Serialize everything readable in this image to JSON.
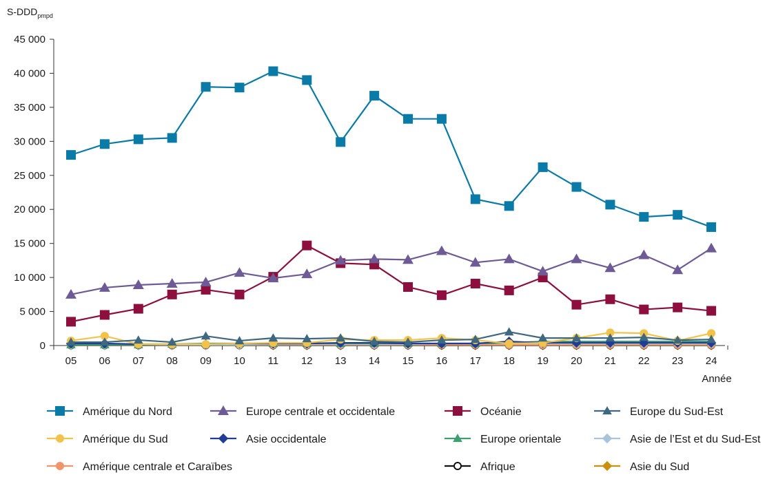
{
  "chart_data": {
    "type": "line",
    "ylabel_main": "S-DDD",
    "ylabel_sub": "pmpd",
    "xlabel": "Année",
    "ylim": [
      0,
      45000
    ],
    "y_ticks": [
      0,
      5000,
      10000,
      15000,
      20000,
      25000,
      30000,
      35000,
      40000,
      45000
    ],
    "y_tick_labels": [
      "0",
      "5 000",
      "10 000",
      "15 000",
      "20 000",
      "25 000",
      "30 000",
      "35 000",
      "40 000",
      "45 000"
    ],
    "categories": [
      "05",
      "06",
      "07",
      "08",
      "09",
      "10",
      "11",
      "12",
      "13",
      "14",
      "15",
      "16",
      "17",
      "18",
      "19",
      "20",
      "21",
      "22",
      "23",
      "24"
    ],
    "grid": false,
    "legend_position": "bottom",
    "series": [
      {
        "name": "Amérique du Nord",
        "color": "#0a7aa6",
        "marker": "square",
        "values": [
          28000,
          29600,
          30300,
          30500,
          38000,
          37900,
          40300,
          39000,
          29900,
          36700,
          33300,
          33300,
          21500,
          20500,
          26200,
          23300,
          20700,
          18900,
          19200,
          17400
        ]
      },
      {
        "name": "Europe centrale et occidentale",
        "color": "#6e5b96",
        "marker": "triangle",
        "values": [
          7500,
          8500,
          8900,
          9100,
          9300,
          10700,
          9900,
          10500,
          12500,
          12700,
          12600,
          13900,
          12200,
          12700,
          10900,
          12700,
          11400,
          13300,
          11100,
          14300
        ]
      },
      {
        "name": "Océanie",
        "color": "#8c0f3e",
        "marker": "square",
        "values": [
          3500,
          4500,
          5400,
          7500,
          8200,
          7500,
          10100,
          14700,
          12100,
          11900,
          8600,
          7400,
          9100,
          8100,
          10000,
          6000,
          6800,
          5300,
          5600,
          5100
        ]
      },
      {
        "name": "Europe du Sud-Est",
        "color": "#3e6880",
        "marker": "triangle",
        "values": [
          500,
          500,
          800,
          500,
          1400,
          700,
          1100,
          1000,
          1100,
          600,
          500,
          800,
          900,
          2000,
          1100,
          1100,
          1100,
          1200,
          800,
          900
        ]
      },
      {
        "name": "Amérique du Sud",
        "color": "#f2c24b",
        "marker": "circle",
        "values": [
          700,
          1400,
          200,
          200,
          200,
          300,
          400,
          400,
          900,
          800,
          800,
          1100,
          800,
          300,
          400,
          1100,
          1900,
          1800,
          700,
          1800
        ]
      },
      {
        "name": "Asie occidentale",
        "color": "#1f3c96",
        "marker": "diamond",
        "values": [
          300,
          300,
          200,
          200,
          200,
          300,
          300,
          300,
          400,
          400,
          300,
          300,
          300,
          600,
          400,
          400,
          400,
          400,
          400,
          400
        ]
      },
      {
        "name": "Europe orientale",
        "color": "#3f9e70",
        "marker": "triangle",
        "values": [
          100,
          100,
          100,
          200,
          300,
          300,
          300,
          300,
          300,
          300,
          300,
          300,
          300,
          400,
          600,
          600,
          600,
          600,
          600,
          600
        ]
      },
      {
        "name": "Asie de l’Est et du Sud-Est",
        "color": "#a9c4d8",
        "marker": "diamond",
        "values": [
          100,
          100,
          100,
          100,
          100,
          100,
          200,
          200,
          200,
          200,
          200,
          300,
          300,
          300,
          300,
          300,
          300,
          300,
          300,
          300
        ]
      },
      {
        "name": "Amérique centrale et Caraïbes",
        "color": "#f0956a",
        "marker": "circle",
        "values": [
          100,
          100,
          100,
          100,
          100,
          100,
          100,
          100,
          100,
          100,
          100,
          100,
          100,
          100,
          100,
          100,
          100,
          100,
          100,
          100
        ]
      },
      {
        "name": "Afrique",
        "color": "#111111",
        "marker": "circle-open",
        "values": [
          50,
          50,
          50,
          50,
          50,
          50,
          50,
          50,
          50,
          50,
          50,
          50,
          50,
          50,
          50,
          50,
          50,
          50,
          50,
          50
        ]
      },
      {
        "name": "Asie du Sud",
        "color": "#c8900f",
        "marker": "diamond",
        "values": [
          30,
          30,
          30,
          30,
          30,
          30,
          30,
          30,
          30,
          30,
          30,
          30,
          30,
          30,
          30,
          30,
          30,
          30,
          30,
          30
        ]
      }
    ]
  }
}
